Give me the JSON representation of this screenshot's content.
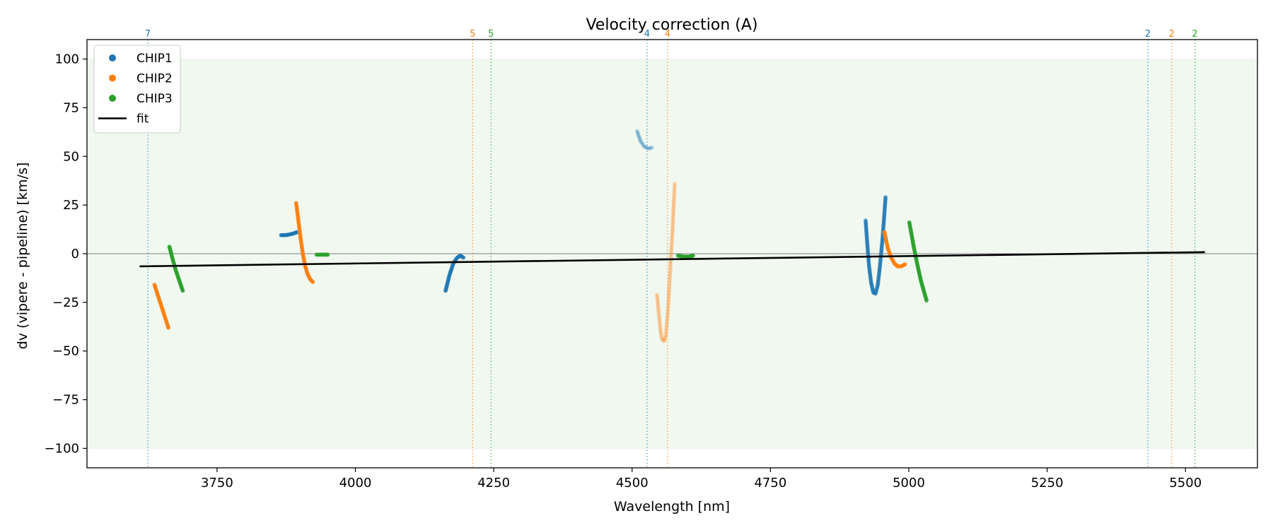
{
  "chart_data": {
    "type": "scatter",
    "title": "Velocity correction (A)",
    "xlabel": "Wavelength [nm]",
    "ylabel": "dv (vipere - pipeline) [km/s]",
    "xlim": [
      3515,
      5630
    ],
    "ylim": [
      -110,
      110
    ],
    "xticks": [
      3750,
      4000,
      4250,
      4500,
      4750,
      5000,
      5250,
      5500
    ],
    "yticks": [
      -100,
      -75,
      -50,
      -25,
      0,
      25,
      50,
      75,
      100
    ],
    "x_tick_labels": [
      "3750",
      "4000",
      "4250",
      "4500",
      "4750",
      "5000",
      "5250",
      "5500"
    ],
    "y_tick_labels": [
      "−100",
      "−75",
      "−50",
      "−25",
      "0",
      "25",
      "50",
      "75",
      "100"
    ],
    "grid": false,
    "legend_position": "top-left",
    "shaded_band": {
      "y_from": -100,
      "y_to": 100,
      "color": "#2ca02c"
    },
    "zero_line": 0,
    "colors": {
      "CHIP1": "#1f77b4",
      "CHIP2": "#ff7f0e",
      "CHIP3": "#2ca02c",
      "fit": "#000000"
    },
    "legend": [
      {
        "label": "CHIP1",
        "kind": "marker",
        "color": "#1f77b4"
      },
      {
        "label": "CHIP2",
        "kind": "marker",
        "color": "#ff7f0e"
      },
      {
        "label": "CHIP3",
        "kind": "marker",
        "color": "#2ca02c"
      },
      {
        "label": "fit",
        "kind": "line",
        "color": "#000000"
      }
    ],
    "fit": {
      "x": [
        3610,
        5535
      ],
      "y": [
        -6.5,
        0.8
      ]
    },
    "order_markers": [
      {
        "x": 3625,
        "label": "7",
        "color": "#1f77b4"
      },
      {
        "x": 4212,
        "label": "5",
        "color": "#ff7f0e"
      },
      {
        "x": 4245,
        "label": "5",
        "color": "#2ca02c"
      },
      {
        "x": 4527,
        "label": "4",
        "color": "#1f77b4"
      },
      {
        "x": 4564,
        "label": "4",
        "color": "#ff7f0e"
      },
      {
        "x": 5432,
        "label": "2",
        "color": "#1f77b4"
      },
      {
        "x": 5475,
        "label": "2",
        "color": "#ff7f0e"
      },
      {
        "x": 5517,
        "label": "2",
        "color": "#2ca02c"
      }
    ],
    "series": [
      {
        "name": "CHIP1",
        "color": "#1f77b4",
        "opacity": 0.9,
        "points": [
          [
            3866,
            9.5
          ],
          [
            3876,
            9.6
          ],
          [
            3886,
            10.2
          ],
          [
            3894,
            11.0
          ]
        ]
      },
      {
        "name": "CHIP1",
        "color": "#1f77b4",
        "opacity": 0.9,
        "points": [
          [
            4163,
            -19
          ],
          [
            4170,
            -11
          ],
          [
            4177,
            -5
          ],
          [
            4184,
            -2
          ],
          [
            4190,
            -1
          ],
          [
            4195,
            -2
          ]
        ]
      },
      {
        "name": "CHIP1",
        "color": "#1f77b4",
        "opacity": 0.3,
        "points": [
          [
            4509,
            63
          ],
          [
            4515,
            58
          ],
          [
            4522,
            55
          ],
          [
            4530,
            54
          ],
          [
            4536,
            54.5
          ]
        ]
      },
      {
        "name": "CHIP1",
        "color": "#1f77b4",
        "opacity": 0.75,
        "points": [
          [
            4922,
            17
          ],
          [
            4925,
            5
          ],
          [
            4928,
            -6
          ],
          [
            4932,
            -15
          ],
          [
            4936,
            -20
          ],
          [
            4940,
            -20.5
          ],
          [
            4944,
            -16
          ],
          [
            4948,
            -6
          ],
          [
            4952,
            6
          ],
          [
            4955,
            17
          ],
          [
            4958,
            29
          ]
        ]
      },
      {
        "name": "CHIP2",
        "color": "#ff7f0e",
        "opacity": 0.9,
        "points": [
          [
            3637,
            -16
          ],
          [
            3645,
            -23
          ],
          [
            3653,
            -30
          ],
          [
            3662,
            -38
          ]
        ]
      },
      {
        "name": "CHIP2",
        "color": "#ff7f0e",
        "opacity": 0.85,
        "points": [
          [
            3893,
            26
          ],
          [
            3897,
            17
          ],
          [
            3901,
            8
          ],
          [
            3905,
            0
          ],
          [
            3909,
            -6
          ],
          [
            3913,
            -10
          ],
          [
            3918,
            -13
          ],
          [
            3923,
            -14.5
          ]
        ]
      },
      {
        "name": "CHIP2",
        "color": "#ff7f0e",
        "opacity": 0.25,
        "points": [
          [
            4545,
            -21
          ],
          [
            4548,
            -30
          ],
          [
            4551,
            -39
          ],
          [
            4554,
            -44
          ],
          [
            4558,
            -45
          ],
          [
            4561,
            -42
          ],
          [
            4565,
            -28
          ],
          [
            4569,
            -8
          ],
          [
            4573,
            12
          ],
          [
            4577,
            36
          ]
        ]
      },
      {
        "name": "CHIP2",
        "color": "#ff7f0e",
        "opacity": 0.9,
        "points": [
          [
            4956,
            11
          ],
          [
            4962,
            3
          ],
          [
            4968,
            -2
          ],
          [
            4974,
            -5
          ],
          [
            4980,
            -6.5
          ],
          [
            4986,
            -6.5
          ],
          [
            4993,
            -5.5
          ]
        ]
      },
      {
        "name": "CHIP3",
        "color": "#2ca02c",
        "opacity": 0.9,
        "points": [
          [
            3664,
            3.5
          ],
          [
            3670,
            -3
          ],
          [
            3676,
            -9
          ],
          [
            3682,
            -14
          ],
          [
            3688,
            -19
          ]
        ]
      },
      {
        "name": "CHIP3",
        "color": "#2ca02c",
        "opacity": 0.9,
        "points": [
          [
            3930,
            -0.5
          ],
          [
            3940,
            -0.5
          ],
          [
            3950,
            -0.5
          ]
        ]
      },
      {
        "name": "CHIP3",
        "color": "#2ca02c",
        "opacity": 0.9,
        "points": [
          [
            4583,
            -1
          ],
          [
            4593,
            -1.5
          ],
          [
            4603,
            -1.5
          ],
          [
            4610,
            -1
          ]
        ]
      },
      {
        "name": "CHIP3",
        "color": "#2ca02c",
        "opacity": 0.9,
        "points": [
          [
            5001,
            16
          ],
          [
            5008,
            5
          ],
          [
            5015,
            -5
          ],
          [
            5022,
            -14
          ],
          [
            5032,
            -24
          ]
        ]
      }
    ]
  }
}
